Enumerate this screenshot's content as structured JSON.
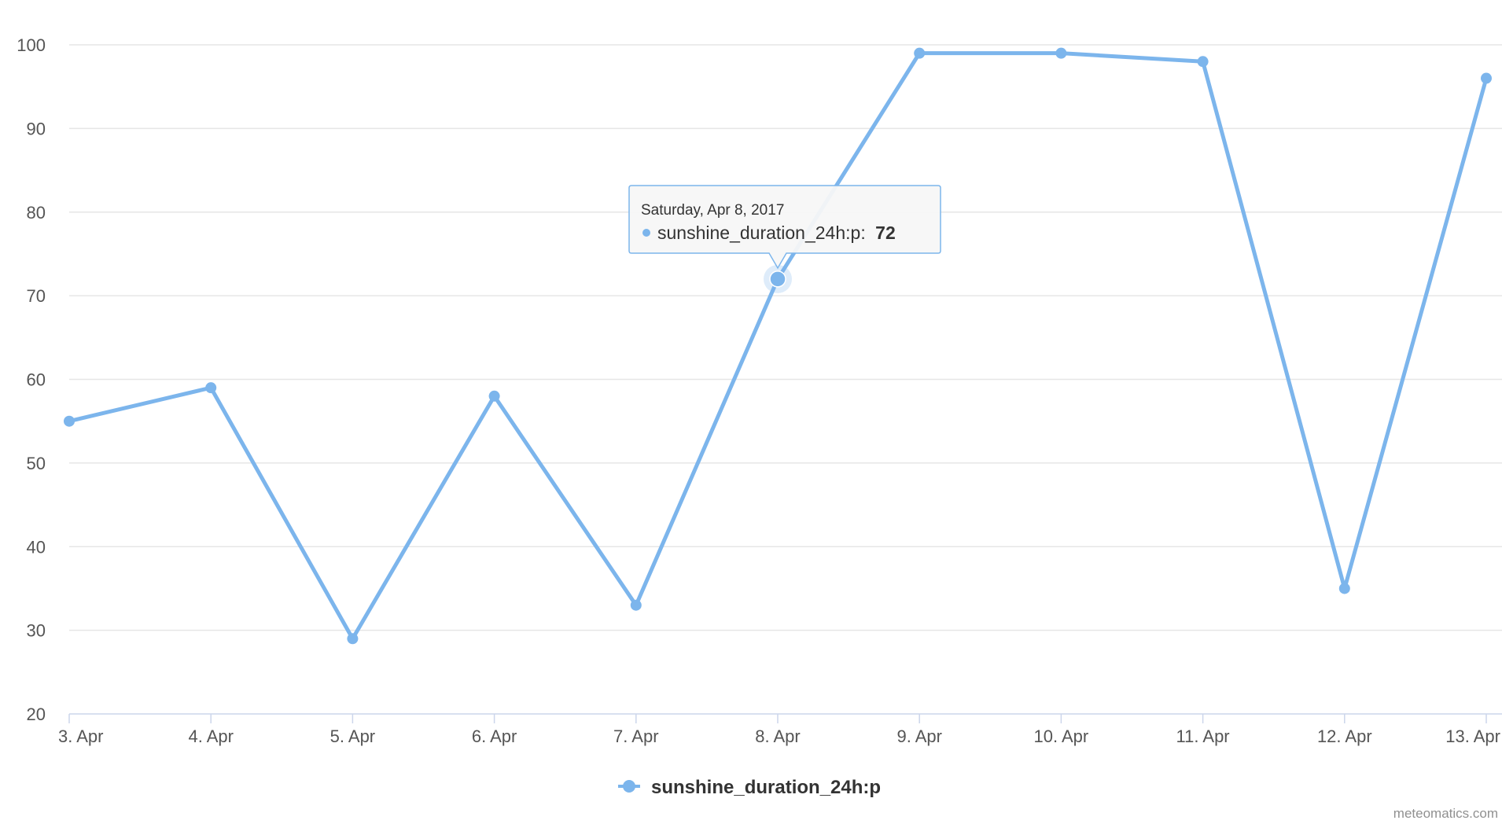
{
  "chart_data": {
    "type": "line",
    "categories": [
      "3. Apr",
      "4. Apr",
      "5. Apr",
      "6. Apr",
      "7. Apr",
      "8. Apr",
      "9. Apr",
      "10. Apr",
      "11. Apr",
      "12. Apr",
      "13. Apr"
    ],
    "series": [
      {
        "name": "sunshine_duration_24h:p",
        "values": [
          55,
          59,
          29,
          58,
          33,
          72,
          99,
          99,
          98,
          35,
          96
        ],
        "color": "#7cb5ec"
      }
    ],
    "y_ticks": [
      "20",
      "30",
      "40",
      "50",
      "60",
      "70",
      "80",
      "90",
      "100"
    ],
    "ylim": [
      20,
      100
    ],
    "grid": true,
    "legend_position": "bottom-center",
    "tooltip": {
      "category_index": 5,
      "date_label": "Saturday, Apr 8, 2017",
      "series_label": "sunshine_duration_24h:p:",
      "value_label": "72"
    },
    "credits": "meteomatics.com"
  }
}
